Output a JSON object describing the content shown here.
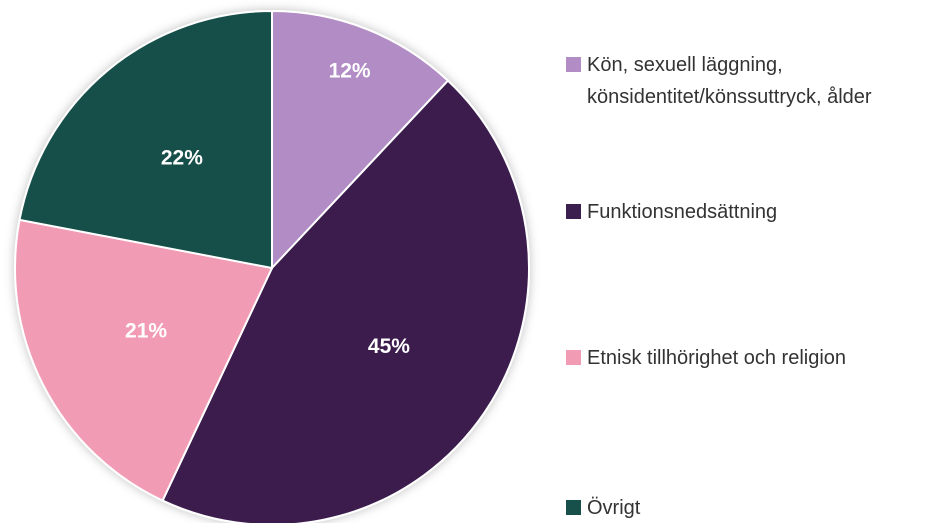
{
  "chart_data": {
    "type": "pie",
    "categories": [
      "Kön, sexuell läggning, könsidentitet/könssuttryck, ålder",
      "Funktionsnedsättning",
      "Etnisk tillhörighet och religion",
      "Övrigt"
    ],
    "values": [
      12,
      45,
      21,
      22
    ],
    "value_labels": [
      "12%",
      "45%",
      "21%",
      "22%"
    ],
    "colors": [
      "#b28cc4",
      "#3b1f4e",
      "#f29bb5",
      "#17504a"
    ],
    "legend": "right"
  }
}
